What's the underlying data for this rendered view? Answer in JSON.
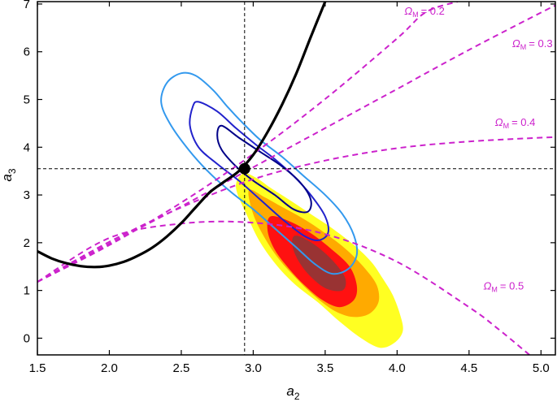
{
  "chart_data": {
    "type": "contour",
    "xlabel": "a",
    "xlabel_sub": "2",
    "ylabel": "a",
    "ylabel_sub": "3",
    "xlim": [
      1.5,
      5.1
    ],
    "ylim": [
      -0.35,
      7.05
    ],
    "x_ticks": [
      "1.5",
      "2.0",
      "2.5",
      "3.0",
      "3.5",
      "4.0",
      "4.5",
      "5.0"
    ],
    "y_ticks": [
      "0",
      "1",
      "2",
      "3",
      "4",
      "5",
      "6",
      "7"
    ],
    "reference_point": {
      "x": 2.94,
      "y": 3.55
    },
    "colors": {
      "filled_contours": [
        "#ffff22",
        "#ffaa00",
        "#ff1111",
        "#993333"
      ],
      "line_contours": [
        "#3399ee",
        "#2222cc",
        "#000088"
      ],
      "omega_curves": "#cc22cc",
      "relation_curve": "#000000"
    },
    "filled_contours": [
      {
        "level": "outer",
        "points": [
          [
            2.88,
            3.15
          ],
          [
            2.93,
            3.45
          ],
          [
            3.02,
            3.36
          ],
          [
            3.12,
            3.15
          ],
          [
            3.25,
            2.9
          ],
          [
            3.4,
            2.6
          ],
          [
            3.55,
            2.3
          ],
          [
            3.7,
            1.95
          ],
          [
            3.82,
            1.6
          ],
          [
            3.9,
            1.25
          ],
          [
            3.97,
            0.9
          ],
          [
            4.02,
            0.5
          ],
          [
            4.04,
            0.15
          ],
          [
            3.98,
            -0.1
          ],
          [
            3.88,
            -0.2
          ],
          [
            3.75,
            0.0
          ],
          [
            3.6,
            0.35
          ],
          [
            3.45,
            0.75
          ],
          [
            3.3,
            1.1
          ],
          [
            3.17,
            1.5
          ],
          [
            3.05,
            2.0
          ],
          [
            2.96,
            2.55
          ]
        ]
      },
      {
        "level": "second",
        "points": [
          [
            2.97,
            3.1
          ],
          [
            3.08,
            2.95
          ],
          [
            3.2,
            2.75
          ],
          [
            3.35,
            2.5
          ],
          [
            3.5,
            2.2
          ],
          [
            3.65,
            1.85
          ],
          [
            3.78,
            1.45
          ],
          [
            3.86,
            1.1
          ],
          [
            3.87,
            0.75
          ],
          [
            3.8,
            0.5
          ],
          [
            3.68,
            0.45
          ],
          [
            3.55,
            0.6
          ],
          [
            3.42,
            0.9
          ],
          [
            3.3,
            1.25
          ],
          [
            3.18,
            1.65
          ],
          [
            3.08,
            2.1
          ],
          [
            3.0,
            2.6
          ]
        ]
      },
      {
        "level": "third",
        "points": [
          [
            3.12,
            2.55
          ],
          [
            3.25,
            2.45
          ],
          [
            3.4,
            2.2
          ],
          [
            3.55,
            1.85
          ],
          [
            3.67,
            1.5
          ],
          [
            3.72,
            1.1
          ],
          [
            3.7,
            0.8
          ],
          [
            3.6,
            0.65
          ],
          [
            3.48,
            0.8
          ],
          [
            3.36,
            1.1
          ],
          [
            3.25,
            1.45
          ],
          [
            3.15,
            1.85
          ],
          [
            3.1,
            2.25
          ]
        ]
      },
      {
        "level": "core",
        "points": [
          [
            3.3,
            2.15
          ],
          [
            3.43,
            1.95
          ],
          [
            3.56,
            1.6
          ],
          [
            3.64,
            1.25
          ],
          [
            3.62,
            1.0
          ],
          [
            3.5,
            1.05
          ],
          [
            3.38,
            1.35
          ],
          [
            3.3,
            1.7
          ],
          [
            3.27,
            2.0
          ]
        ]
      }
    ],
    "line_contours": [
      {
        "level": "outer",
        "points": [
          [
            2.5,
            5.55
          ],
          [
            2.6,
            5.5
          ],
          [
            2.72,
            5.2
          ],
          [
            2.82,
            4.85
          ],
          [
            2.93,
            4.5
          ],
          [
            3.05,
            4.15
          ],
          [
            3.2,
            3.8
          ],
          [
            3.35,
            3.4
          ],
          [
            3.5,
            3.0
          ],
          [
            3.62,
            2.6
          ],
          [
            3.7,
            2.15
          ],
          [
            3.72,
            1.75
          ],
          [
            3.66,
            1.45
          ],
          [
            3.55,
            1.35
          ],
          [
            3.43,
            1.55
          ],
          [
            3.3,
            1.9
          ],
          [
            3.15,
            2.3
          ],
          [
            3.0,
            2.7
          ],
          [
            2.85,
            3.05
          ],
          [
            2.7,
            3.45
          ],
          [
            2.55,
            3.95
          ],
          [
            2.42,
            4.5
          ],
          [
            2.36,
            4.95
          ],
          [
            2.4,
            5.35
          ]
        ]
      },
      {
        "level": "middle",
        "points": [
          [
            2.62,
            4.95
          ],
          [
            2.75,
            4.75
          ],
          [
            2.88,
            4.4
          ],
          [
            3.02,
            4.05
          ],
          [
            3.15,
            3.75
          ],
          [
            3.28,
            3.4
          ],
          [
            3.4,
            3.0
          ],
          [
            3.5,
            2.55
          ],
          [
            3.52,
            2.2
          ],
          [
            3.45,
            2.05
          ],
          [
            3.35,
            2.15
          ],
          [
            3.2,
            2.5
          ],
          [
            3.05,
            2.9
          ],
          [
            2.9,
            3.3
          ],
          [
            2.75,
            3.65
          ],
          [
            2.62,
            4.0
          ],
          [
            2.56,
            4.45
          ],
          [
            2.58,
            4.85
          ]
        ]
      },
      {
        "level": "inner",
        "points": [
          [
            2.78,
            4.45
          ],
          [
            2.9,
            4.2
          ],
          [
            3.05,
            3.9
          ],
          [
            3.2,
            3.6
          ],
          [
            3.33,
            3.25
          ],
          [
            3.4,
            2.9
          ],
          [
            3.38,
            2.65
          ],
          [
            3.28,
            2.7
          ],
          [
            3.15,
            3.0
          ],
          [
            3.0,
            3.3
          ],
          [
            2.88,
            3.6
          ],
          [
            2.78,
            3.95
          ],
          [
            2.75,
            4.25
          ]
        ]
      }
    ],
    "relation_curve": {
      "points": [
        [
          1.5,
          1.82
        ],
        [
          1.6,
          1.67
        ],
        [
          1.7,
          1.57
        ],
        [
          1.8,
          1.51
        ],
        [
          1.9,
          1.49
        ],
        [
          2.0,
          1.52
        ],
        [
          2.1,
          1.6
        ],
        [
          2.2,
          1.73
        ],
        [
          2.3,
          1.9
        ],
        [
          2.4,
          2.13
        ],
        [
          2.5,
          2.41
        ],
        [
          2.6,
          2.74
        ],
        [
          2.7,
          3.06
        ],
        [
          2.8,
          3.28
        ],
        [
          2.9,
          3.5
        ],
        [
          3.0,
          3.84
        ],
        [
          3.1,
          4.32
        ],
        [
          3.2,
          4.89
        ],
        [
          3.3,
          5.55
        ],
        [
          3.4,
          6.31
        ],
        [
          3.5,
          7.05
        ]
      ]
    },
    "omega_curves": [
      {
        "label": "Ω",
        "label_sub": "M",
        "label_value": "= 0.2",
        "points": [
          [
            1.5,
            1.18
          ],
          [
            2.0,
            1.95
          ],
          [
            2.5,
            2.84
          ],
          [
            3.0,
            3.86
          ],
          [
            3.5,
            5.01
          ],
          [
            4.0,
            6.28
          ],
          [
            4.2,
            6.83
          ],
          [
            4.42,
            7.05
          ]
        ]
      },
      {
        "label": "Ω",
        "label_sub": "M",
        "label_value": "= 0.3",
        "points": [
          [
            1.5,
            1.18
          ],
          [
            2.0,
            1.98
          ],
          [
            2.5,
            2.76
          ],
          [
            3.0,
            3.58
          ],
          [
            3.5,
            4.4
          ],
          [
            4.0,
            5.22
          ],
          [
            4.5,
            6.04
          ],
          [
            5.0,
            6.82
          ],
          [
            5.1,
            6.97
          ]
        ]
      },
      {
        "label": "Ω",
        "label_sub": "M",
        "label_value": "= 0.4",
        "points": [
          [
            1.5,
            1.18
          ],
          [
            2.0,
            2.02
          ],
          [
            2.5,
            2.74
          ],
          [
            3.0,
            3.33
          ],
          [
            3.5,
            3.72
          ],
          [
            4.0,
            3.98
          ],
          [
            4.5,
            4.12
          ],
          [
            5.0,
            4.2
          ],
          [
            5.1,
            4.21
          ]
        ]
      },
      {
        "label": "Ω",
        "label_sub": "M",
        "label_value": "= 0.5",
        "points": [
          [
            1.5,
            1.18
          ],
          [
            2.0,
            2.1
          ],
          [
            2.5,
            2.4
          ],
          [
            3.0,
            2.42
          ],
          [
            3.5,
            2.18
          ],
          [
            4.0,
            1.6
          ],
          [
            4.5,
            0.65
          ],
          [
            4.7,
            0.2
          ],
          [
            4.92,
            -0.35
          ]
        ]
      }
    ]
  }
}
